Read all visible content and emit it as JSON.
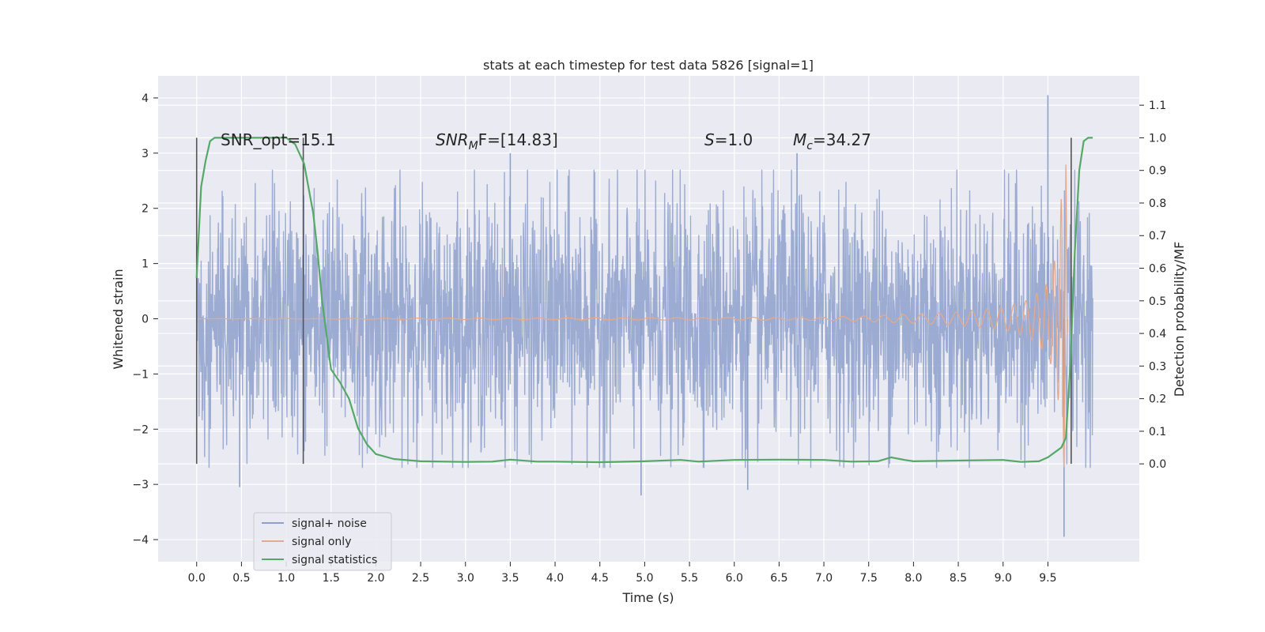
{
  "chart_data": {
    "type": "line",
    "title": "stats at each timestep for test data 5826 [signal=1]",
    "xlabel": "Time (s)",
    "ylabel": "Whitened strain",
    "ylabel_right": "Detection probability/MF",
    "xlim": [
      -0.43,
      10.52
    ],
    "ylim": [
      -4.4,
      4.4
    ],
    "ylim_right": [
      -0.3,
      1.19
    ],
    "x_ticks": [
      "0.0",
      "0.5",
      "1.0",
      "1.5",
      "2.0",
      "2.5",
      "3.0",
      "3.5",
      "4.0",
      "4.5",
      "5.0",
      "5.5",
      "6.0",
      "6.5",
      "7.0",
      "7.5",
      "8.0",
      "8.5",
      "9.0",
      "9.5"
    ],
    "y_ticks": [
      "4",
      "3",
      "2",
      "1",
      "0",
      "−1",
      "−2",
      "−3",
      "−4"
    ],
    "y_ticks_right": [
      "1.1",
      "1.0",
      "0.9",
      "0.8",
      "0.7",
      "0.6",
      "0.5",
      "0.4",
      "0.3",
      "0.2",
      "0.1",
      "0.0"
    ],
    "grid": true,
    "legend_position": "lower-left",
    "annotations": {
      "snr_opt": "SNR_opt=15.1",
      "snr_mf_sym": "SNR",
      "snr_mf_sub": "M",
      "snr_mf_rest": "F=[14.83]",
      "s_sym": "S",
      "s_rest": "=1.0",
      "mc_sym": "M",
      "mc_sub": "c",
      "mc_rest": "=34.27"
    },
    "vertical_markers": [
      0.0,
      1.19,
      9.76
    ],
    "series": [
      {
        "name": "signal+ noise",
        "color": "#8da0cb",
        "axis": "left",
        "x_range": [
          0.0,
          10.0
        ],
        "typical_amplitude": 1.3,
        "peak_values": [
          {
            "x": 0.48,
            "y": -3.05
          },
          {
            "x": 3.5,
            "y": 3.0
          },
          {
            "x": 4.96,
            "y": -3.2
          },
          {
            "x": 6.15,
            "y": -3.1
          },
          {
            "x": 6.7,
            "y": 3.0
          },
          {
            "x": 9.5,
            "y": 4.05
          },
          {
            "x": 9.68,
            "y": -3.95
          }
        ]
      },
      {
        "name": "signal only",
        "color": "#e5a98b",
        "axis": "left",
        "x_range": [
          0.0,
          9.72
        ],
        "type_note": "",
        "envelope": [
          {
            "x": 0.0,
            "y": 0.0
          },
          {
            "x": 7.0,
            "y": 0.03
          },
          {
            "x": 8.0,
            "y": 0.08
          },
          {
            "x": 8.5,
            "y": 0.12
          },
          {
            "x": 9.0,
            "y": 0.2
          },
          {
            "x": 9.3,
            "y": 0.35
          },
          {
            "x": 9.5,
            "y": 0.65
          },
          {
            "x": 9.6,
            "y": 1.2
          },
          {
            "x": 9.66,
            "y": 2.4
          },
          {
            "x": 9.7,
            "y": 3.05
          },
          {
            "x": 9.72,
            "y": 0.0
          }
        ]
      },
      {
        "name": "signal statistics",
        "color": "#55a868",
        "axis": "right",
        "x": [
          0.0,
          0.05,
          0.1,
          0.15,
          0.2,
          0.3,
          0.5,
          0.7,
          0.9,
          1.0,
          1.1,
          1.2,
          1.3,
          1.35,
          1.4,
          1.5,
          1.6,
          1.7,
          1.8,
          1.9,
          2.0,
          2.2,
          2.5,
          3.0,
          3.3,
          3.5,
          3.8,
          4.0,
          4.5,
          5.0,
          5.4,
          5.6,
          6.0,
          6.5,
          7.0,
          7.3,
          7.6,
          7.75,
          7.9,
          8.0,
          8.5,
          9.0,
          9.2,
          9.4,
          9.5,
          9.6,
          9.65,
          9.7,
          9.75,
          9.8,
          9.85,
          9.9,
          9.95,
          10.0
        ],
        "values": [
          0.57,
          0.85,
          0.93,
          0.99,
          1.0,
          1.0,
          1.0,
          1.0,
          1.0,
          1.0,
          0.98,
          0.92,
          0.77,
          0.65,
          0.5,
          0.29,
          0.25,
          0.2,
          0.11,
          0.06,
          0.03,
          0.015,
          0.008,
          0.006,
          0.007,
          0.013,
          0.007,
          0.007,
          0.005,
          0.008,
          0.012,
          0.007,
          0.012,
          0.013,
          0.012,
          0.007,
          0.008,
          0.02,
          0.012,
          0.008,
          0.01,
          0.012,
          0.006,
          0.008,
          0.02,
          0.04,
          0.05,
          0.08,
          0.3,
          0.65,
          0.9,
          0.99,
          1.0,
          1.0
        ]
      }
    ]
  }
}
